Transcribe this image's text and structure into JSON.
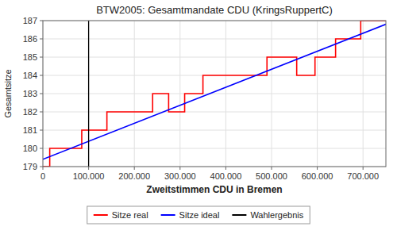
{
  "chart_data": {
    "type": "line",
    "title": "BTW2005: Gesamtmandate CDU (KringsRuppertC)",
    "xlabel": "Zweitstimmen CDU in Bremen",
    "ylabel": "Gesamtsitze",
    "series": [
      {
        "name": "Sitze real",
        "color": "#ff0000",
        "x": [
          0,
          15000,
          15000,
          85000,
          85000,
          140000,
          140000,
          240000,
          240000,
          275000,
          275000,
          310000,
          310000,
          350000,
          350000,
          490000,
          490000,
          555000,
          555000,
          595000,
          595000,
          640000,
          640000,
          695000,
          695000,
          750000
        ],
        "values": [
          179,
          179,
          180,
          180,
          181,
          181,
          182,
          182,
          183,
          183,
          182,
          182,
          183,
          183,
          184,
          184,
          185,
          185,
          184,
          184,
          185,
          185,
          186,
          186,
          187,
          187
        ]
      },
      {
        "name": "Sitze ideal",
        "color": "#0000ff",
        "x": [
          0,
          750000
        ],
        "values": [
          179.4,
          186.8
        ]
      },
      {
        "name": "Wahlergebnis",
        "color": "#000000",
        "type": "vline",
        "x": [
          100000
        ]
      }
    ],
    "xlim": [
      0,
      750000
    ],
    "xticks": [
      0,
      {
        "value": 100000,
        "label": "100.000"
      },
      {
        "value": 200000,
        "label": "200.000"
      },
      {
        "value": 300000,
        "label": "300.000"
      },
      {
        "value": 400000,
        "label": "400.000"
      },
      {
        "value": 500000,
        "label": "500.000"
      },
      {
        "value": 600000,
        "label": "600.000"
      },
      {
        "value": 700000,
        "label": "700.000"
      }
    ],
    "ylim": [
      179,
      187
    ],
    "yticks": [
      179,
      180,
      181,
      182,
      183,
      184,
      185,
      186,
      187
    ],
    "grid": true,
    "legend": "bottom"
  }
}
